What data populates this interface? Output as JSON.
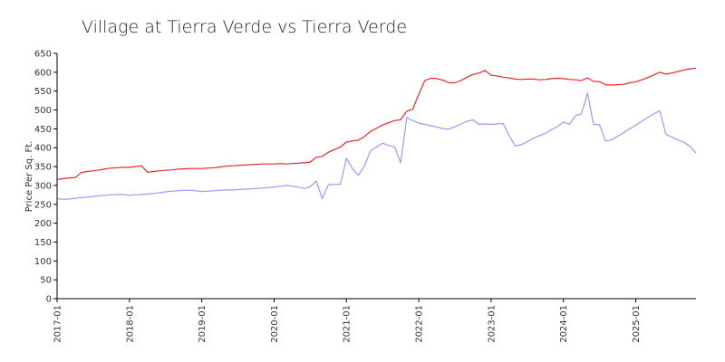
{
  "chart_data": {
    "type": "line",
    "title": "Village at Tierra Verde vs Tierra Verde",
    "xlabel": "",
    "ylabel": "Price Per Sq. Ft.",
    "ylim": [
      0,
      650
    ],
    "yticks": [
      0,
      50,
      100,
      150,
      200,
      250,
      300,
      350,
      400,
      450,
      500,
      550,
      600,
      650
    ],
    "xlim": [
      "2017-01",
      "2025-11"
    ],
    "xticks": [
      "2017-01",
      "2018-01",
      "2019-01",
      "2020-01",
      "2021-01",
      "2022-01",
      "2023-01",
      "2024-01",
      "2025-01"
    ],
    "grid": false,
    "colors": {
      "red_series": "#e8272a",
      "blue_series": "#9a9af0"
    },
    "series": [
      {
        "color": "#e8272a",
        "points": [
          [
            "2017-01",
            316
          ],
          [
            "2017-02",
            318
          ],
          [
            "2017-03",
            320
          ],
          [
            "2017-04",
            321
          ],
          [
            "2017-05",
            334
          ],
          [
            "2017-06",
            337
          ],
          [
            "2017-07",
            339
          ],
          [
            "2017-08",
            341
          ],
          [
            "2017-09",
            344
          ],
          [
            "2017-10",
            346
          ],
          [
            "2017-11",
            347
          ],
          [
            "2017-12",
            348
          ],
          [
            "2018-01",
            348
          ],
          [
            "2018-02",
            350
          ],
          [
            "2018-03",
            352
          ],
          [
            "2018-04",
            335
          ],
          [
            "2018-05",
            337
          ],
          [
            "2018-06",
            339
          ],
          [
            "2018-07",
            340
          ],
          [
            "2018-08",
            341
          ],
          [
            "2018-09",
            343
          ],
          [
            "2018-10",
            344
          ],
          [
            "2018-11",
            345
          ],
          [
            "2018-12",
            345
          ],
          [
            "2019-01",
            345
          ],
          [
            "2019-02",
            346
          ],
          [
            "2019-03",
            347
          ],
          [
            "2019-04",
            349
          ],
          [
            "2019-05",
            351
          ],
          [
            "2019-06",
            352
          ],
          [
            "2019-07",
            353
          ],
          [
            "2019-08",
            354
          ],
          [
            "2019-09",
            355
          ],
          [
            "2019-10",
            356
          ],
          [
            "2019-11",
            357
          ],
          [
            "2019-12",
            357
          ],
          [
            "2020-01",
            357
          ],
          [
            "2020-02",
            358
          ],
          [
            "2020-03",
            357
          ],
          [
            "2020-04",
            358
          ],
          [
            "2020-05",
            359
          ],
          [
            "2020-06",
            360
          ],
          [
            "2020-07",
            362
          ],
          [
            "2020-08",
            375
          ],
          [
            "2020-09",
            377
          ],
          [
            "2020-10",
            388
          ],
          [
            "2020-11",
            395
          ],
          [
            "2020-12",
            402
          ],
          [
            "2021-01",
            415
          ],
          [
            "2021-02",
            418
          ],
          [
            "2021-03",
            420
          ],
          [
            "2021-04",
            430
          ],
          [
            "2021-05",
            443
          ],
          [
            "2021-06",
            452
          ],
          [
            "2021-07",
            460
          ],
          [
            "2021-08",
            466
          ],
          [
            "2021-09",
            472
          ],
          [
            "2021-10",
            474
          ],
          [
            "2021-11",
            497
          ],
          [
            "2021-12",
            502
          ],
          [
            "2022-01",
            542
          ],
          [
            "2022-02",
            578
          ],
          [
            "2022-03",
            584
          ],
          [
            "2022-04",
            583
          ],
          [
            "2022-05",
            579
          ],
          [
            "2022-06",
            572
          ],
          [
            "2022-07",
            572
          ],
          [
            "2022-08",
            578
          ],
          [
            "2022-09",
            587
          ],
          [
            "2022-10",
            594
          ],
          [
            "2022-11",
            598
          ],
          [
            "2022-12",
            605
          ],
          [
            "2023-01",
            592
          ],
          [
            "2023-02",
            590
          ],
          [
            "2023-03",
            587
          ],
          [
            "2023-04",
            585
          ],
          [
            "2023-05",
            582
          ],
          [
            "2023-06",
            581
          ],
          [
            "2023-07",
            582
          ],
          [
            "2023-08",
            582
          ],
          [
            "2023-09",
            580
          ],
          [
            "2023-10",
            581
          ],
          [
            "2023-11",
            583
          ],
          [
            "2023-12",
            584
          ],
          [
            "2024-01",
            583
          ],
          [
            "2024-02",
            581
          ],
          [
            "2024-03",
            580
          ],
          [
            "2024-04",
            578
          ],
          [
            "2024-05",
            585
          ],
          [
            "2024-06",
            576
          ],
          [
            "2024-07",
            575
          ],
          [
            "2024-08",
            567
          ],
          [
            "2024-09",
            566
          ],
          [
            "2024-10",
            567
          ],
          [
            "2024-11",
            568
          ],
          [
            "2024-12",
            572
          ],
          [
            "2025-01",
            575
          ],
          [
            "2025-02",
            580
          ],
          [
            "2025-03",
            586
          ],
          [
            "2025-04",
            593
          ],
          [
            "2025-05",
            600
          ],
          [
            "2025-06",
            595
          ],
          [
            "2025-07",
            598
          ],
          [
            "2025-08",
            602
          ],
          [
            "2025-09",
            606
          ],
          [
            "2025-10",
            609
          ],
          [
            "2025-11",
            611
          ]
        ]
      },
      {
        "color": "#9a9af0",
        "points": [
          [
            "2017-01",
            265
          ],
          [
            "2017-02",
            263
          ],
          [
            "2017-03",
            264
          ],
          [
            "2017-04",
            266
          ],
          [
            "2017-05",
            268
          ],
          [
            "2017-06",
            269
          ],
          [
            "2017-07",
            271
          ],
          [
            "2017-08",
            273
          ],
          [
            "2017-09",
            274
          ],
          [
            "2017-10",
            275
          ],
          [
            "2017-11",
            276
          ],
          [
            "2017-12",
            276
          ],
          [
            "2018-01",
            274
          ],
          [
            "2018-02",
            275
          ],
          [
            "2018-03",
            276
          ],
          [
            "2018-04",
            277
          ],
          [
            "2018-05",
            279
          ],
          [
            "2018-06",
            281
          ],
          [
            "2018-07",
            283
          ],
          [
            "2018-08",
            285
          ],
          [
            "2018-09",
            286
          ],
          [
            "2018-10",
            287
          ],
          [
            "2018-11",
            287
          ],
          [
            "2018-12",
            286
          ],
          [
            "2019-01",
            284
          ],
          [
            "2019-02",
            285
          ],
          [
            "2019-03",
            286
          ],
          [
            "2019-04",
            287
          ],
          [
            "2019-05",
            288
          ],
          [
            "2019-06",
            288
          ],
          [
            "2019-07",
            289
          ],
          [
            "2019-08",
            290
          ],
          [
            "2019-09",
            291
          ],
          [
            "2019-10",
            292
          ],
          [
            "2019-11",
            293
          ],
          [
            "2019-12",
            294
          ],
          [
            "2020-01",
            296
          ],
          [
            "2020-02",
            298
          ],
          [
            "2020-03",
            300
          ],
          [
            "2020-04",
            298
          ],
          [
            "2020-05",
            296
          ],
          [
            "2020-06",
            292
          ],
          [
            "2020-07",
            297
          ],
          [
            "2020-08",
            312
          ],
          [
            "2020-09",
            265
          ],
          [
            "2020-10",
            302
          ],
          [
            "2020-11",
            303
          ],
          [
            "2020-12",
            303
          ],
          [
            "2021-01",
            372
          ],
          [
            "2021-02",
            345
          ],
          [
            "2021-03",
            327
          ],
          [
            "2021-04",
            352
          ],
          [
            "2021-05",
            392
          ],
          [
            "2021-06",
            402
          ],
          [
            "2021-07",
            412
          ],
          [
            "2021-08",
            406
          ],
          [
            "2021-09",
            402
          ],
          [
            "2021-10",
            360
          ],
          [
            "2021-11",
            480
          ],
          [
            "2021-12",
            472
          ],
          [
            "2022-01",
            465
          ],
          [
            "2022-02",
            462
          ],
          [
            "2022-03",
            458
          ],
          [
            "2022-04",
            455
          ],
          [
            "2022-05",
            451
          ],
          [
            "2022-06",
            449
          ],
          [
            "2022-07",
            456
          ],
          [
            "2022-08",
            463
          ],
          [
            "2022-09",
            470
          ],
          [
            "2022-10",
            474
          ],
          [
            "2022-11",
            462
          ],
          [
            "2022-12",
            463
          ],
          [
            "2023-01",
            462
          ],
          [
            "2023-02",
            463
          ],
          [
            "2023-03",
            464
          ],
          [
            "2023-04",
            432
          ],
          [
            "2023-05",
            405
          ],
          [
            "2023-06",
            408
          ],
          [
            "2023-07",
            416
          ],
          [
            "2023-08",
            425
          ],
          [
            "2023-09",
            432
          ],
          [
            "2023-10",
            438
          ],
          [
            "2023-11",
            448
          ],
          [
            "2023-12",
            456
          ],
          [
            "2024-01",
            468
          ],
          [
            "2024-02",
            462
          ],
          [
            "2024-03",
            485
          ],
          [
            "2024-04",
            490
          ],
          [
            "2024-05",
            545
          ],
          [
            "2024-06",
            462
          ],
          [
            "2024-07",
            461
          ],
          [
            "2024-08",
            418
          ],
          [
            "2024-09",
            421
          ],
          [
            "2024-10",
            430
          ],
          [
            "2024-11",
            440
          ],
          [
            "2024-12",
            450
          ],
          [
            "2025-01",
            460
          ],
          [
            "2025-02",
            470
          ],
          [
            "2025-03",
            480
          ],
          [
            "2025-04",
            490
          ],
          [
            "2025-05",
            498
          ],
          [
            "2025-06",
            436
          ],
          [
            "2025-07",
            428
          ],
          [
            "2025-08",
            421
          ],
          [
            "2025-09",
            414
          ],
          [
            "2025-10",
            404
          ],
          [
            "2025-11",
            386
          ]
        ]
      }
    ]
  }
}
